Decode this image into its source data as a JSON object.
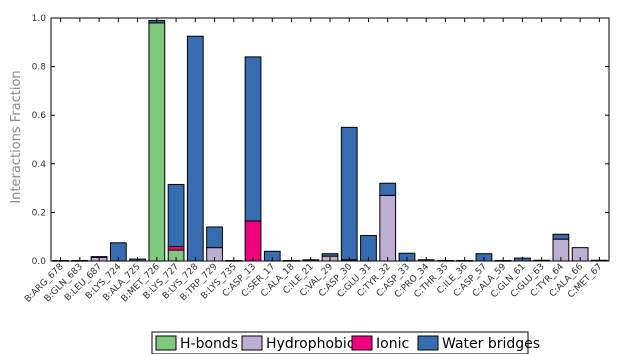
{
  "chart_data": {
    "type": "bar",
    "stacked": true,
    "ylabel": "Interactions Fraction",
    "xlabel": "",
    "ylim": [
      0,
      1.0
    ],
    "yticks": [
      "0.0",
      "0.2",
      "0.4",
      "0.6",
      "0.8",
      "1.0"
    ],
    "grid": false,
    "legend_position": "bottom",
    "categories": [
      "B:ARG_678",
      "B:GLN_683",
      "B:LEU_687",
      "B:LYS_724",
      "B:ALA_725",
      "B:MET_726",
      "B:LYS_727",
      "B:LYS_728",
      "B:TRP_729",
      "B:LYS_735",
      "C:ASP_13",
      "C:SER_17",
      "C:ALA_18",
      "C:ILE_21",
      "C:VAL_29",
      "C:ASP_30",
      "C:GLU_31",
      "C:TYR_32",
      "C:ASP_33",
      "C:PRO_34",
      "C:THR_35",
      "C:ILE_36",
      "C:ASP_57",
      "C:ALA_59",
      "C:GLN_61",
      "C:GLU_63",
      "C:TYR_64",
      "C:ALA_66",
      "C:MET_67"
    ],
    "series": [
      {
        "name": "H-bonds",
        "color": "#7fc97f",
        "values": [
          0,
          0,
          0,
          0,
          0,
          0.98,
          0.045,
          0,
          0,
          0,
          0,
          0,
          0,
          0,
          0,
          0,
          0,
          0,
          0,
          0,
          0,
          0,
          0,
          0,
          0,
          0,
          0,
          0,
          0
        ]
      },
      {
        "name": "Hydrophobic",
        "color": "#beaed4",
        "values": [
          0,
          0,
          0.015,
          0,
          0,
          0,
          0,
          0,
          0.055,
          0,
          0,
          0,
          0,
          0.003,
          0.02,
          0,
          0,
          0.27,
          0,
          0,
          0,
          0,
          0,
          0,
          0,
          0,
          0.09,
          0.055,
          0
        ]
      },
      {
        "name": "Ionic",
        "color": "#f0027f",
        "values": [
          0,
          0,
          0,
          0,
          0,
          0,
          0.015,
          0,
          0,
          0,
          0.165,
          0,
          0,
          0,
          0,
          0.005,
          0,
          0,
          0,
          0,
          0,
          0,
          0,
          0,
          0,
          0,
          0,
          0,
          0
        ]
      },
      {
        "name": "Water bridges",
        "color": "#386cb0",
        "values": [
          0.002,
          0.002,
          0.003,
          0.075,
          0.008,
          0.01,
          0.255,
          0.925,
          0.085,
          0.002,
          0.675,
          0.04,
          0.002,
          0.002,
          0.01,
          0.545,
          0.105,
          0.05,
          0.032,
          0.005,
          0.002,
          0.002,
          0.03,
          0.002,
          0.012,
          0.003,
          0.02,
          0,
          0.003
        ]
      }
    ]
  }
}
